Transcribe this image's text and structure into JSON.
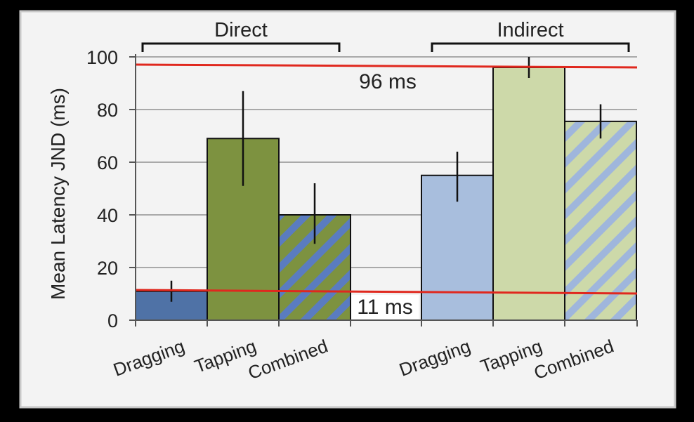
{
  "chart_data": {
    "type": "bar",
    "ylabel": "Mean Latency JND (ms)",
    "ylim": [
      0,
      100
    ],
    "yticks": [
      0,
      20,
      40,
      60,
      80,
      100
    ],
    "grid": true,
    "groups": [
      {
        "name": "Direct",
        "bars": [
          {
            "category": "Dragging",
            "value": 11,
            "err_low": 7,
            "err_high": 15,
            "color": "#4f72a6",
            "hatch": false
          },
          {
            "category": "Tapping",
            "value": 69,
            "err_low": 51,
            "err_high": 87,
            "color": "#7d9240",
            "hatch": false
          },
          {
            "category": "Combined",
            "value": 40,
            "err_low": 29,
            "err_high": 52,
            "color": "#7d9240",
            "hatch": true,
            "hatch_color": "#5a7cc0"
          }
        ]
      },
      {
        "name": "Indirect",
        "bars": [
          {
            "category": "Dragging",
            "value": 55,
            "err_low": 45,
            "err_high": 64,
            "color": "#a8bedd",
            "hatch": false
          },
          {
            "category": "Tapping",
            "value": 96,
            "err_low": 92,
            "err_high": 100,
            "color": "#cdd9a9",
            "hatch": false
          },
          {
            "category": "Combined",
            "value": 75.5,
            "err_low": 69,
            "err_high": 82,
            "color": "#cdd9a9",
            "hatch": true,
            "hatch_color": "#9fb6dc"
          }
        ]
      }
    ],
    "reference_lines": [
      {
        "value": 96,
        "label": "96 ms",
        "color": "#e0281e"
      },
      {
        "value": 11,
        "label": "11 ms",
        "color": "#e0281e"
      }
    ]
  }
}
